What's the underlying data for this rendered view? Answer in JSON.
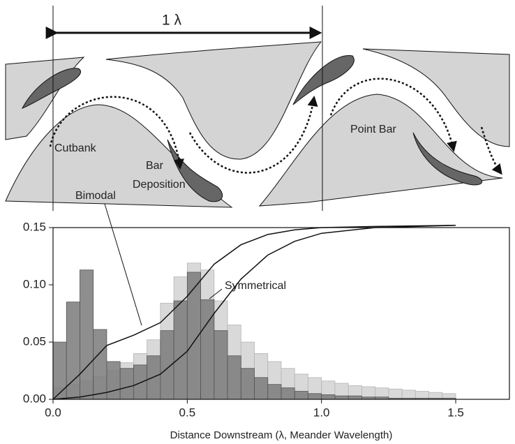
{
  "diagram": {
    "wavelength_label": "1 λ",
    "cutbank": "Cutbank",
    "bar_deposition": [
      "Bar",
      "Deposition"
    ],
    "point_bar": "Point Bar"
  },
  "chart_data": {
    "type": "histogram",
    "x_label": "Distance Downstream (λ, Meander Wavelength)",
    "bins": [
      0,
      0.05,
      0.1,
      0.15,
      0.2,
      0.25,
      0.3,
      0.35,
      0.4,
      0.45,
      0.5,
      0.55,
      0.6,
      0.65,
      0.7,
      0.75,
      0.8,
      0.85,
      0.9,
      0.95,
      1,
      1.05,
      1.1,
      1.15,
      1.2,
      1.25,
      1.3,
      1.35,
      1.4,
      1.45,
      1.5
    ],
    "series": [
      {
        "name": "Symmetrical",
        "color": "#d9d9d9",
        "values": [
          0.01,
          0.013,
          0.016,
          0.02,
          0.025,
          0.032,
          0.04,
          0.052,
          0.084,
          0.107,
          0.119,
          0.113,
          0.086,
          0.065,
          0.05,
          0.04,
          0.033,
          0.027,
          0.022,
          0.019,
          0.016,
          0.014,
          0.012,
          0.011,
          0.01,
          0.009,
          0.008,
          0.007,
          0.006,
          0.005
        ]
      },
      {
        "name": "Bimodal",
        "color": "#7a7a7a",
        "values": [
          0.05,
          0.085,
          0.113,
          0.061,
          0.033,
          0.027,
          0.03,
          0.038,
          0.06,
          0.086,
          0.111,
          0.087,
          0.06,
          0.038,
          0.027,
          0.019,
          0.013,
          0.01,
          0.007,
          0.005,
          0.004,
          0.003,
          0.003,
          0.002,
          0.002,
          0.001,
          0.001,
          0.001,
          0.001,
          0.001
        ]
      }
    ],
    "curves": [
      {
        "color": "#111111",
        "x": [
          0,
          0.1,
          0.2,
          0.3,
          0.4,
          0.5,
          0.6,
          0.7,
          0.8,
          0.9,
          1,
          1.2,
          1.5
        ],
        "values": [
          0,
          0.022,
          0.047,
          0.056,
          0.067,
          0.09,
          0.118,
          0.135,
          0.144,
          0.148,
          0.15,
          0.151,
          0.152
        ]
      },
      {
        "color": "#111111",
        "x": [
          0,
          0.1,
          0.2,
          0.3,
          0.4,
          0.5,
          0.6,
          0.7,
          0.8,
          0.9,
          1,
          1.2,
          1.5
        ],
        "values": [
          0,
          0.002,
          0.006,
          0.012,
          0.022,
          0.042,
          0.075,
          0.105,
          0.126,
          0.138,
          0.145,
          0.15,
          0.152
        ]
      }
    ],
    "xlim": [
      0,
      1.7
    ],
    "ylim": [
      0,
      0.15
    ],
    "xticks": [
      {
        "value": 0,
        "label": "0.0"
      },
      {
        "value": 0.5,
        "label": "0.5"
      },
      {
        "value": 1,
        "label": "1.0"
      },
      {
        "value": 1.5,
        "label": "1.5"
      }
    ],
    "yticks": [
      {
        "value": 0,
        "label": "0.00"
      },
      {
        "value": 0.05,
        "label": "0.05"
      },
      {
        "value": 0.1,
        "label": "0.10"
      },
      {
        "value": 0.15,
        "label": "0.15"
      }
    ]
  }
}
